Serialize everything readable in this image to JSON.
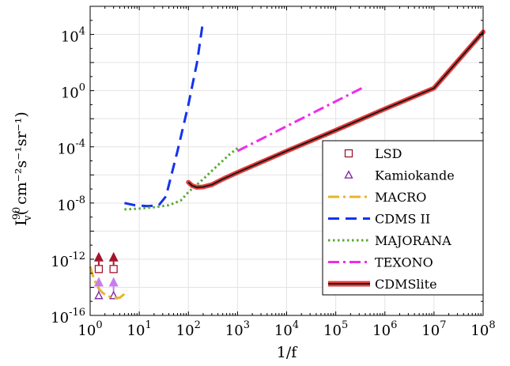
{
  "chart_data": {
    "type": "line",
    "xlabel": "1/f",
    "ylabel": {
      "main": "I",
      "sup": "90",
      "sub": "v",
      "units": "( cm⁻²s⁻¹sr⁻¹)"
    },
    "x_scale": "log",
    "y_scale": "log",
    "xlim": [
      1,
      100000000
    ],
    "ylim": [
      1e-16,
      1000000.0
    ],
    "grid": true,
    "legend_position": "lower-right",
    "x_ticks": [
      {
        "value": 1,
        "base": "10",
        "exp": "0"
      },
      {
        "value": 10,
        "base": "10",
        "exp": "1"
      },
      {
        "value": 100,
        "base": "10",
        "exp": "2"
      },
      {
        "value": 1000,
        "base": "10",
        "exp": "3"
      },
      {
        "value": 10000,
        "base": "10",
        "exp": "4"
      },
      {
        "value": 100000,
        "base": "10",
        "exp": "5"
      },
      {
        "value": 1000000,
        "base": "10",
        "exp": "6"
      },
      {
        "value": 10000000,
        "base": "10",
        "exp": "7"
      },
      {
        "value": 100000000,
        "base": "10",
        "exp": "8"
      }
    ],
    "y_ticks": [
      {
        "value": 1e-16,
        "base": "10",
        "exp": "-16"
      },
      {
        "value": 1e-12,
        "base": "10",
        "exp": "-12"
      },
      {
        "value": 1e-08,
        "base": "10",
        "exp": "-8"
      },
      {
        "value": 0.0001,
        "base": "10",
        "exp": "-4"
      },
      {
        "value": 1,
        "base": "10",
        "exp": "0"
      },
      {
        "value": 10000,
        "base": "10",
        "exp": "4"
      }
    ],
    "series": [
      {
        "name": "LSD",
        "kind": "markers",
        "marker": "square",
        "color": "#a3152d",
        "points": [
          {
            "x": 1.5,
            "y": 2e-13,
            "arrow_y": 1.5e-12
          },
          {
            "x": 3.0,
            "y": 2e-13,
            "arrow_y": 1.5e-12
          }
        ]
      },
      {
        "name": "Kamiokande",
        "kind": "markers",
        "marker": "triangle",
        "color": "#7b1f9e",
        "arrow_color": "#c77cf0",
        "points": [
          {
            "x": 1.5,
            "y": 2.5e-15,
            "arrow_y": 2.5e-14
          },
          {
            "x": 3.0,
            "y": 2.5e-15,
            "arrow_y": 2.5e-14
          }
        ]
      },
      {
        "name": "MACRO",
        "kind": "line",
        "dash": "dashdot",
        "color": "#e7b42e",
        "points": [
          [
            1.0,
            3e-13
          ],
          [
            1.15,
            6e-14
          ],
          [
            1.3,
            2e-14
          ],
          [
            1.5,
            8e-15
          ],
          [
            1.8,
            4e-15
          ],
          [
            2.3,
            2.3e-15
          ],
          [
            3.0,
            1.8e-15
          ],
          [
            4.0,
            1.8e-15
          ],
          [
            4.8,
            3e-15
          ],
          [
            5.5,
            6e-15
          ]
        ]
      },
      {
        "name": "CDMS II",
        "kind": "line",
        "dash": "dash",
        "color": "#1432f0",
        "points": [
          [
            5.0,
            1e-08
          ],
          [
            8.0,
            7e-09
          ],
          [
            15.0,
            6e-09
          ],
          [
            25.0,
            7e-09
          ],
          [
            35.0,
            3e-08
          ],
          [
            60.0,
            5e-05
          ],
          [
            100.0,
            0.1
          ],
          [
            150.0,
            100.0
          ],
          [
            200.0,
            100000.0
          ]
        ]
      },
      {
        "name": "MAJORANA",
        "kind": "line",
        "dash": "dot",
        "color": "#5aa832",
        "points": [
          [
            5.0,
            3.5e-09
          ],
          [
            10.0,
            4e-09
          ],
          [
            20.0,
            5e-09
          ],
          [
            40.0,
            7e-09
          ],
          [
            70.0,
            1.5e-08
          ],
          [
            100.0,
            6e-08
          ],
          [
            200.0,
            5e-07
          ],
          [
            400.0,
            5e-06
          ],
          [
            700.0,
            3e-05
          ],
          [
            1000.0,
            8e-05
          ]
        ]
      },
      {
        "name": "TEXONO",
        "kind": "line",
        "dash": "dashdot",
        "color": "#f02ce8",
        "points": [
          [
            1000.0,
            5e-05
          ],
          [
            400000.0,
            2.0
          ]
        ]
      },
      {
        "name": "CDMSlite",
        "kind": "band",
        "color": "#1a1a1a",
        "band_color": "#e83c3c",
        "points": [
          [
            100.0,
            3e-07
          ],
          [
            120.0,
            1.7e-07
          ],
          [
            150.0,
            1.3e-07
          ],
          [
            200.0,
            1.4e-07
          ],
          [
            300.0,
            2e-07
          ],
          [
            500.0,
            5e-07
          ],
          [
            1000.0,
            1.5e-06
          ],
          [
            10000.0,
            5e-05
          ],
          [
            100000.0,
            0.0015
          ],
          [
            1000000.0,
            0.05
          ],
          [
            10000000.0,
            1.5
          ],
          [
            100000000.0,
            15000.0
          ]
        ]
      }
    ]
  }
}
